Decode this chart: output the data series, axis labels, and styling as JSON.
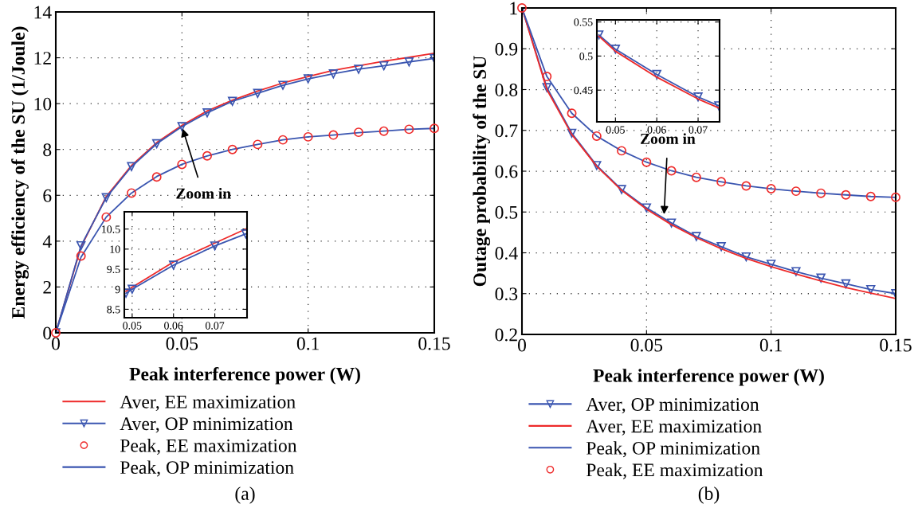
{
  "chart_data": [
    {
      "type": "line",
      "xlabel": "Peak interference power (W)",
      "ylabel": "Energy efficiency of the SU (1/Joule)",
      "xlim": [
        0,
        0.15
      ],
      "ylim": [
        0,
        14
      ],
      "xticks": [
        0,
        0.05,
        0.1,
        0.15
      ],
      "yticks": [
        0,
        2,
        4,
        6,
        8,
        10,
        12,
        14
      ],
      "grid": true,
      "legend": "bottom",
      "x": [
        0,
        0.01,
        0.02,
        0.03,
        0.04,
        0.05,
        0.06,
        0.07,
        0.08,
        0.09,
        0.1,
        0.11,
        0.12,
        0.13,
        0.14,
        0.15
      ],
      "series": [
        {
          "name": "Aver, EE maximization",
          "color": "#ee2a2a",
          "marker": "none",
          "values": [
            0,
            3.75,
            5.95,
            7.3,
            8.3,
            9.05,
            9.68,
            10.15,
            10.55,
            10.9,
            11.18,
            11.45,
            11.65,
            11.85,
            12.02,
            12.2
          ]
        },
        {
          "name": "Aver, OP minimization",
          "color": "#3a55b0",
          "marker": "triangle",
          "values": [
            0,
            3.8,
            5.9,
            7.25,
            8.25,
            9.0,
            9.6,
            10.1,
            10.45,
            10.8,
            11.08,
            11.3,
            11.5,
            11.65,
            11.82,
            11.97
          ]
        },
        {
          "name": "Peak, EE maximization",
          "color": "#ee2a2a",
          "type": "scatter",
          "marker": "circle",
          "values": [
            0,
            3.35,
            5.05,
            6.1,
            6.8,
            7.35,
            7.72,
            8.0,
            8.22,
            8.42,
            8.55,
            8.63,
            8.75,
            8.8,
            8.88,
            8.92
          ]
        },
        {
          "name": "Peak, OP minimization",
          "color": "#3a55b0",
          "marker": "none",
          "values": [
            0,
            3.3,
            5.05,
            6.1,
            6.82,
            7.35,
            7.72,
            8.0,
            8.22,
            8.42,
            8.55,
            8.63,
            8.73,
            8.8,
            8.88,
            8.92
          ]
        }
      ],
      "annotations": [
        {
          "text": "Zoom in",
          "x": 0.05,
          "y": 9.0
        },
        "(a)"
      ]
    },
    {
      "type": "line",
      "xlim": [
        0.0481,
        0.0778
      ],
      "ylim": [
        8.29,
        10.93
      ],
      "xticks": [
        0.05,
        0.06,
        0.07
      ],
      "yticks": [
        8.5,
        9,
        9.5,
        10,
        10.5
      ],
      "grid": true,
      "x": [
        0.0485,
        0.05,
        0.06,
        0.07,
        0.0775
      ],
      "series": [
        {
          "color": "#ee2a2a",
          "marker": "none",
          "values": [
            8.95,
            9.05,
            9.68,
            10.15,
            10.5
          ]
        },
        {
          "color": "#3a55b0",
          "marker": "triangle",
          "values": [
            8.9,
            9.0,
            9.6,
            10.08,
            10.38
          ]
        }
      ]
    },
    {
      "type": "line",
      "xlabel": "Peak interference power (W)",
      "ylabel": "Outage probability of the SU",
      "xlim": [
        0,
        0.15
      ],
      "ylim": [
        0.2,
        1
      ],
      "xticks": [
        0,
        0.05,
        0.1,
        0.15
      ],
      "yticks": [
        0.2,
        0.3,
        0.4,
        0.5,
        0.6,
        0.7,
        0.8,
        0.9,
        1
      ],
      "grid": true,
      "legend": "bottom",
      "x": [
        0,
        0.01,
        0.02,
        0.03,
        0.04,
        0.05,
        0.06,
        0.07,
        0.08,
        0.09,
        0.1,
        0.11,
        0.12,
        0.13,
        0.14,
        0.15
      ],
      "series": [
        {
          "name": "Aver, OP minimization",
          "color": "#3a55b0",
          "marker": "triangle",
          "values": [
            1,
            0.805,
            0.693,
            0.614,
            0.555,
            0.51,
            0.473,
            0.44,
            0.415,
            0.39,
            0.372,
            0.354,
            0.338,
            0.324,
            0.31,
            0.3
          ]
        },
        {
          "name": "Aver, EE maximization",
          "color": "#ee2a2a",
          "marker": "none",
          "values": [
            1,
            0.8,
            0.69,
            0.612,
            0.553,
            0.507,
            0.469,
            0.437,
            0.41,
            0.386,
            0.366,
            0.348,
            0.331,
            0.315,
            0.301,
            0.288
          ]
        },
        {
          "name": "Peak, OP minimization",
          "color": "#3a55b0",
          "marker": "none",
          "values": [
            1,
            0.832,
            0.742,
            0.686,
            0.65,
            0.622,
            0.601,
            0.585,
            0.574,
            0.564,
            0.557,
            0.551,
            0.546,
            0.542,
            0.538,
            0.536
          ]
        },
        {
          "name": "Peak, EE maximization",
          "color": "#ee2a2a",
          "type": "scatter",
          "marker": "circle",
          "values": [
            1,
            0.832,
            0.742,
            0.686,
            0.65,
            0.622,
            0.601,
            0.585,
            0.574,
            0.564,
            0.557,
            0.551,
            0.546,
            0.542,
            0.538,
            0.536
          ]
        }
      ],
      "annotations": [
        {
          "text": "Zoom in",
          "x": 0.057,
          "y": 0.489
        },
        "(b)"
      ]
    },
    {
      "type": "line",
      "xlim": [
        0.0455,
        0.0752
      ],
      "ylim": [
        0.4035,
        0.553
      ],
      "xticks": [
        0.05,
        0.06,
        0.07
      ],
      "yticks": [
        0.45,
        0.5,
        0.55
      ],
      "grid": true,
      "x": [
        0.046,
        0.05,
        0.06,
        0.07,
        0.075
      ],
      "series": [
        {
          "color": "#3a55b0",
          "marker": "triangle",
          "values": [
            0.531,
            0.51,
            0.473,
            0.44,
            0.427
          ]
        },
        {
          "color": "#ee2a2a",
          "marker": "none",
          "values": [
            0.529,
            0.507,
            0.469,
            0.437,
            0.424
          ]
        }
      ]
    }
  ]
}
